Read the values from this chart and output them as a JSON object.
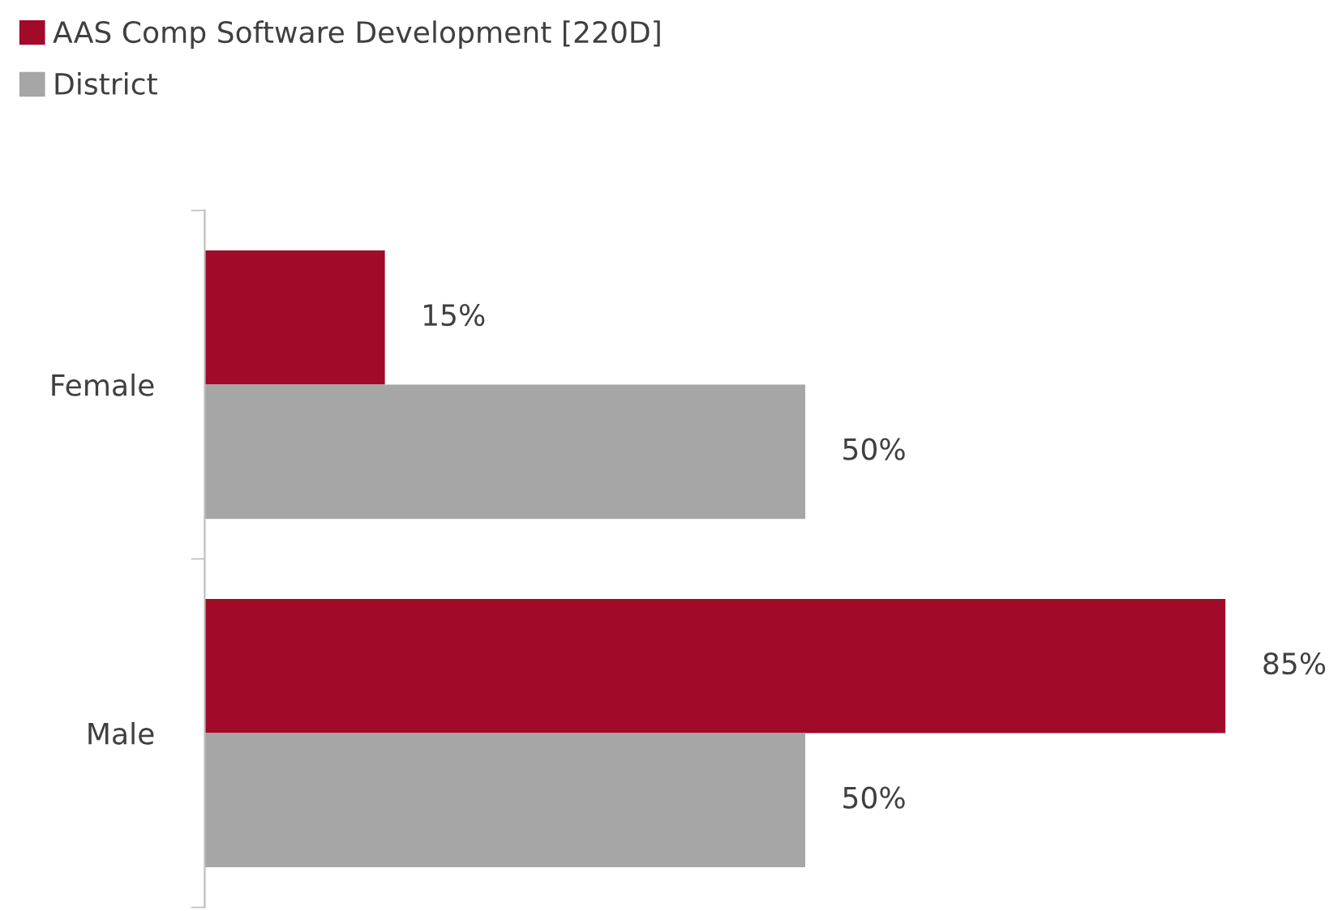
{
  "chart_data": {
    "type": "bar",
    "orientation": "horizontal",
    "categories": [
      "Female",
      "Male"
    ],
    "series": [
      {
        "name": "AAS Comp Software Development [220D]",
        "color": "#a10a28",
        "values": [
          15,
          85
        ],
        "value_labels": [
          "15%",
          "85%"
        ]
      },
      {
        "name": "District",
        "color": "#a6a6a6",
        "values": [
          50,
          50
        ],
        "value_labels": [
          "50%",
          "50%"
        ]
      }
    ],
    "legend": "top left",
    "grid": false,
    "tick_labels": "y"
  }
}
